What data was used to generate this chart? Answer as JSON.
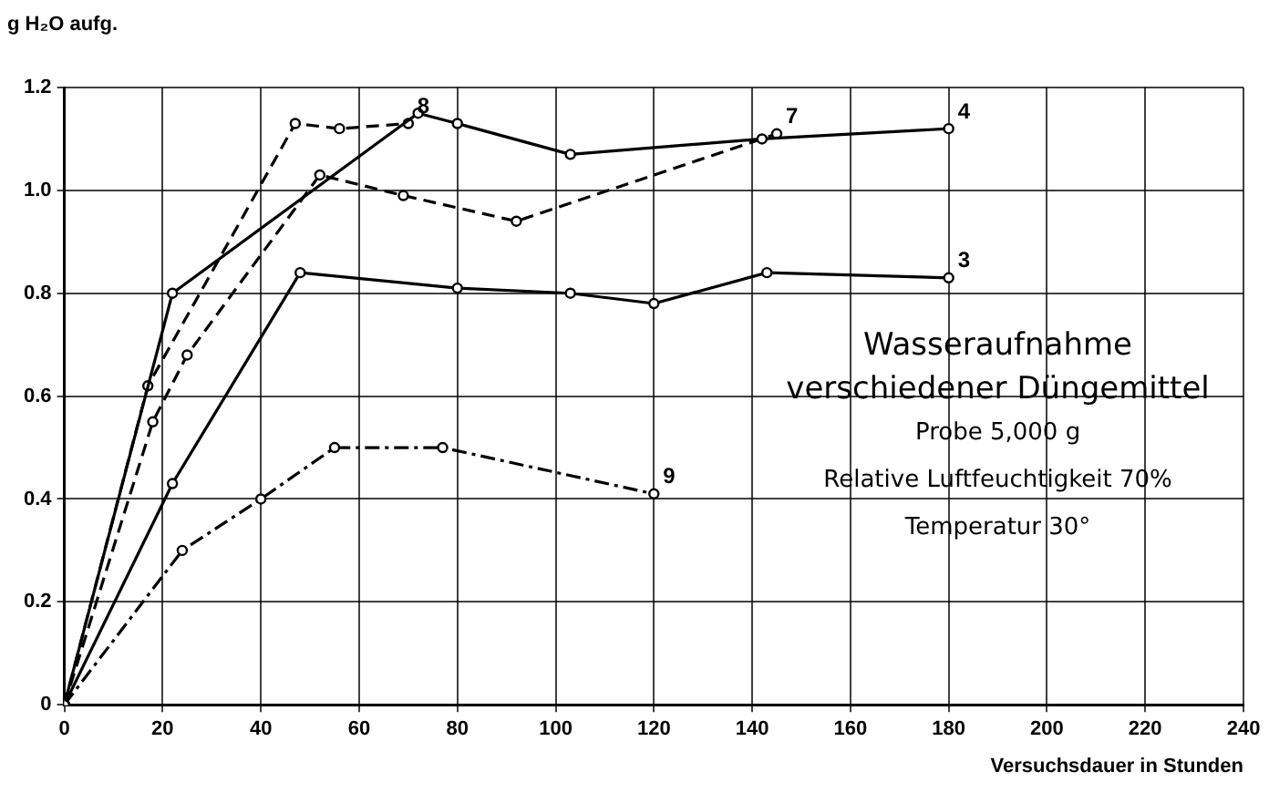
{
  "chart_data": {
    "type": "line",
    "title": "Wasseraufnahme verschiedener Düngemittel",
    "xlabel": "Versuchsdauer in Stunden",
    "ylabel": "g H₂O aufg.",
    "annotations": [
      "Probe 5,000 g",
      "Relative Luftfeuchtigkeit 70%",
      "Temperatur 30°"
    ],
    "series": [
      {
        "name": "4",
        "color": "#000000",
        "line_style": "solid",
        "x": [
          0,
          22,
          72,
          80,
          103,
          142,
          180
        ],
        "values": [
          0,
          0.8,
          1.15,
          1.13,
          1.07,
          1.1,
          1.12
        ]
      },
      {
        "name": "8",
        "color": "#000000",
        "line_style": "dashed",
        "x": [
          0,
          17,
          47,
          56,
          70
        ],
        "values": [
          0,
          0.62,
          1.13,
          1.12,
          1.13
        ]
      },
      {
        "name": "7",
        "color": "#000000",
        "line_style": "dashed",
        "x": [
          0,
          18,
          25,
          52,
          69,
          92,
          145
        ],
        "values": [
          0,
          0.55,
          0.68,
          1.03,
          0.99,
          0.94,
          1.11
        ]
      },
      {
        "name": "3",
        "color": "#000000",
        "line_style": "solid",
        "x": [
          0,
          22,
          48,
          80,
          103,
          120,
          143,
          180
        ],
        "values": [
          0,
          0.43,
          0.84,
          0.81,
          0.8,
          0.78,
          0.84,
          0.83
        ]
      },
      {
        "name": "9",
        "color": "#000000",
        "line_style": "dotted",
        "x": [
          0,
          24,
          40,
          55,
          77,
          120
        ],
        "values": [
          0,
          0.3,
          0.4,
          0.5,
          0.5,
          0.41
        ]
      }
    ],
    "xlim": [
      0,
      240
    ],
    "xticks": [
      0,
      20,
      40,
      60,
      80,
      100,
      120,
      140,
      160,
      180,
      200,
      220,
      240
    ],
    "ylim": [
      0,
      1.2
    ],
    "yticks": [
      0,
      {
        "value": 0.2,
        "label": "0.2"
      },
      {
        "value": 0.4,
        "label": "0.4"
      },
      {
        "value": 0.6,
        "label": "0.6"
      },
      {
        "value": 0.8,
        "label": "0.8"
      },
      {
        "value": 1,
        "label": "1.0"
      },
      {
        "value": 1.2,
        "label": "1.2"
      }
    ],
    "grid": true,
    "legend": false,
    "marker": "circle"
  }
}
